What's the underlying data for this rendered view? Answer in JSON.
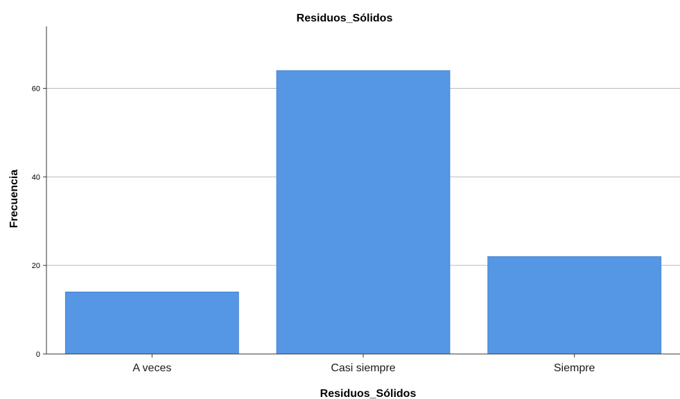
{
  "colors": {
    "bar_fill": "#5597e5",
    "bar_stroke": "#4a86cf",
    "gridline": "#b9b9b9",
    "axis": "#333333",
    "background": "#ffffff"
  },
  "chart_data": {
    "type": "bar",
    "title": "Residuos_Sólidos",
    "xlabel": "Residuos_Sólidos",
    "ylabel": "Frecuencia",
    "categories": [
      "A veces",
      "Casi siempre",
      "Siempre"
    ],
    "values": [
      14,
      64,
      22
    ],
    "ylim": [
      0,
      74
    ],
    "yticks": [
      0,
      20,
      40,
      60
    ],
    "grid": true,
    "legend": "none"
  }
}
